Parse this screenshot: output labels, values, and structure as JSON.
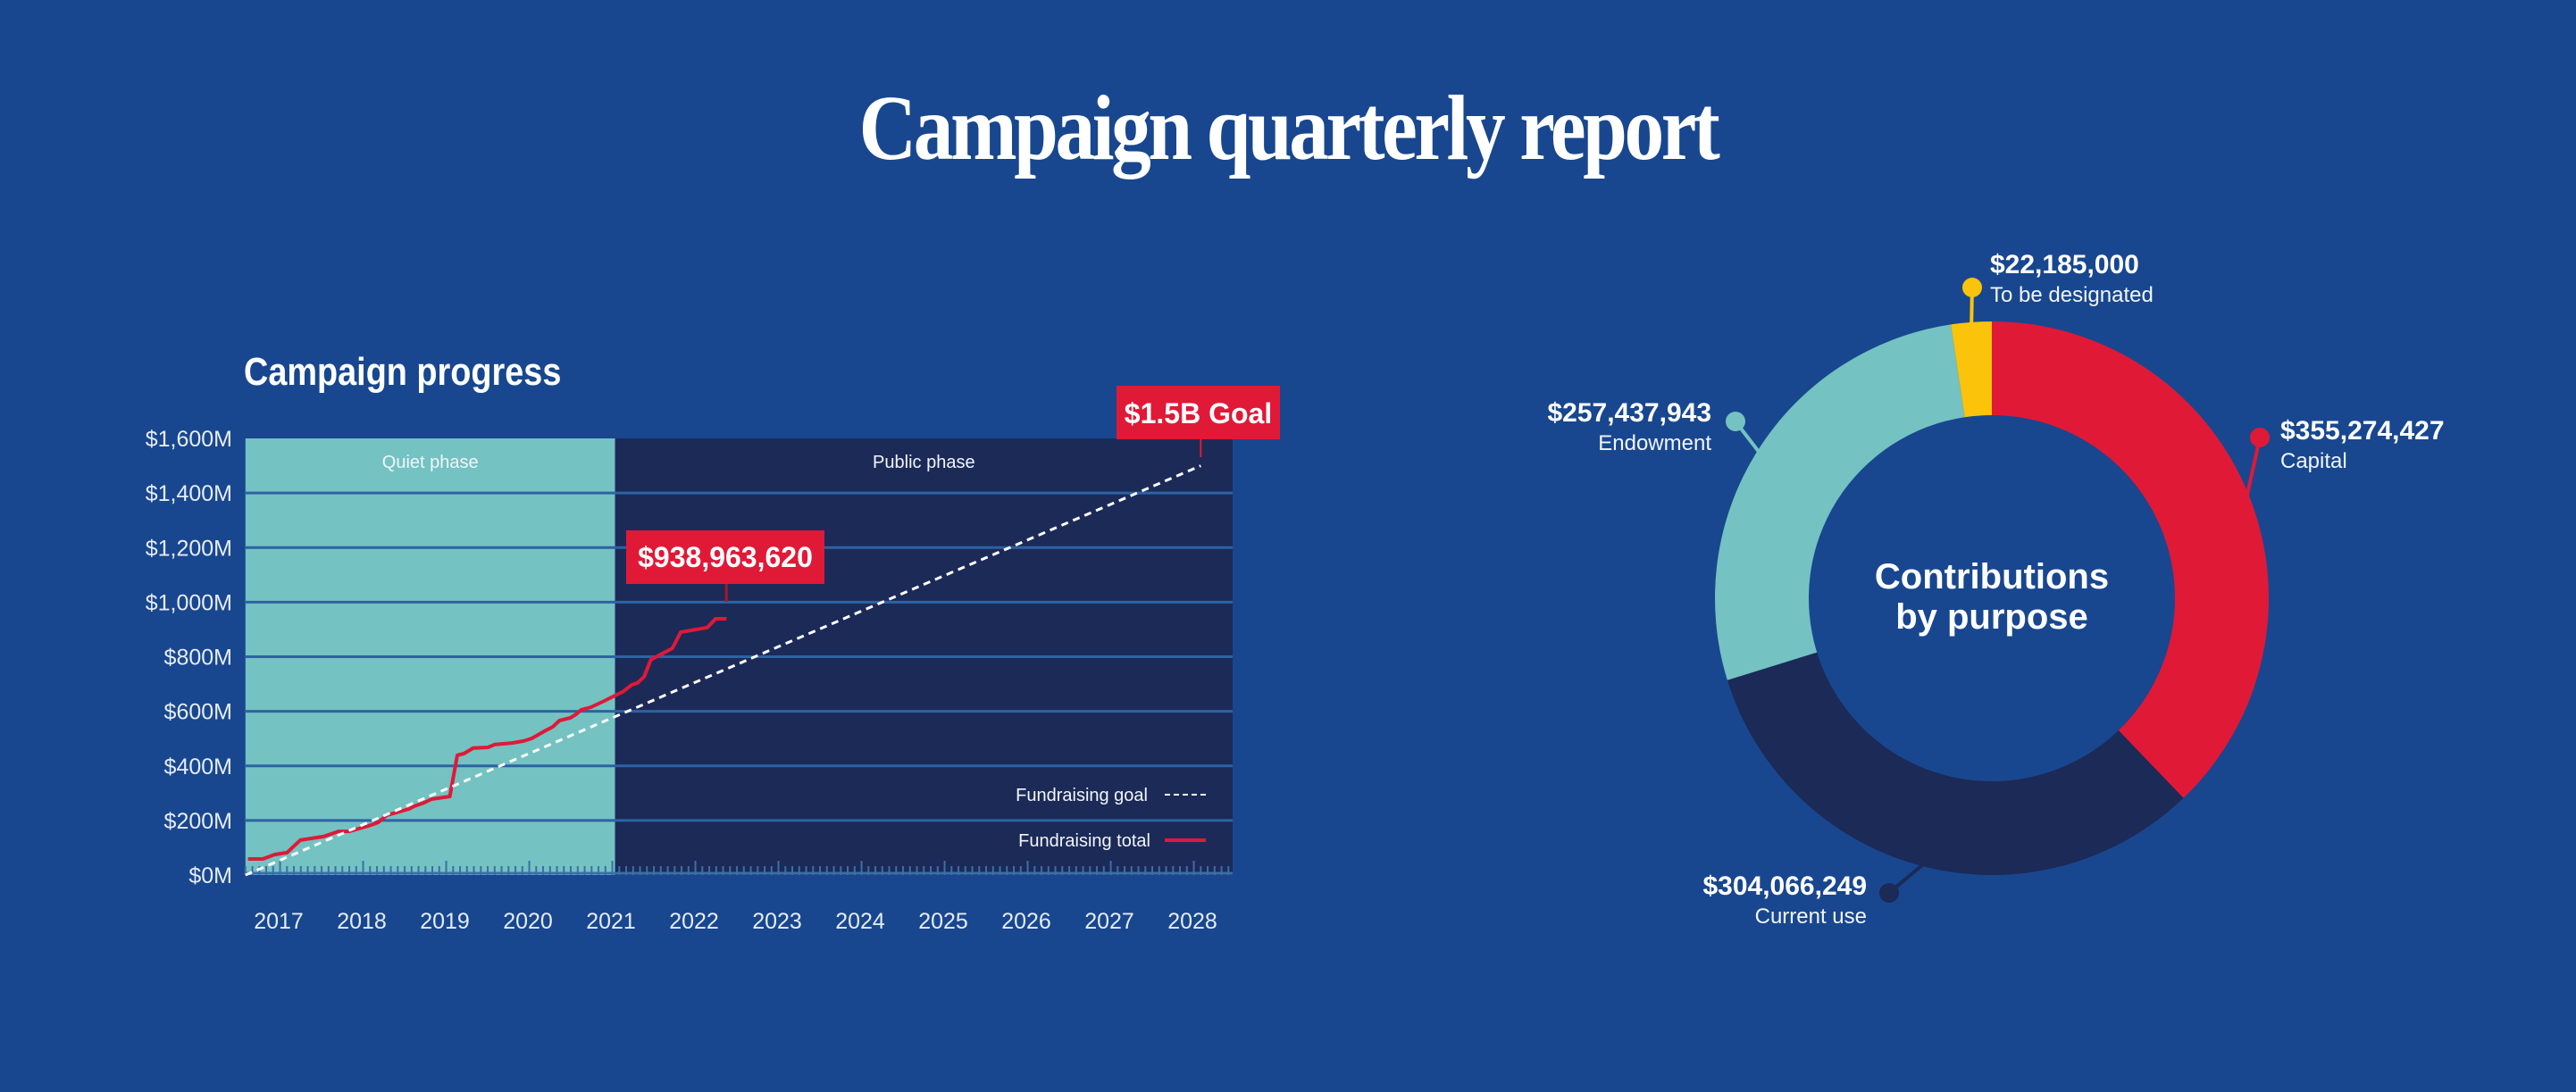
{
  "title": "Campaign quarterly report",
  "colors": {
    "background": "#18478f",
    "quiet_phase": "#74c2c2",
    "public_phase": "#1c2a58",
    "red": "#e01937",
    "teal": "#74c2c2",
    "navy": "#1c2a58",
    "yellow": "#fcc30b",
    "white": "#ffffff"
  },
  "chart_data": [
    {
      "type": "line",
      "title": "Campaign progress",
      "xlabel": "",
      "ylabel": "",
      "x_ticks": [
        "2017",
        "2018",
        "2019",
        "2020",
        "2021",
        "2022",
        "2023",
        "2024",
        "2025",
        "2026",
        "2027",
        "2028"
      ],
      "y_ticks": [
        "$0M",
        "$200M",
        "$400M",
        "$600M",
        "$800M",
        "$1,000M",
        "$1,200M",
        "$1,400M",
        "$1,600M"
      ],
      "y_tick_values": [
        0,
        200,
        400,
        600,
        800,
        1000,
        1200,
        1400,
        1600
      ],
      "xlim": [
        2016.6,
        2028.5
      ],
      "ylim": [
        0,
        1600
      ],
      "grid": true,
      "phases": [
        {
          "label": "Quiet phase",
          "start": 2016.6,
          "end": 2021.05
        },
        {
          "label": "Public phase",
          "start": 2021.05,
          "end": 2028.5
        }
      ],
      "series": [
        {
          "name": "Fundraising total",
          "style": "solid",
          "color": "#e01937",
          "points": [
            [
              2016.63,
              59
            ],
            [
              2016.81,
              59
            ],
            [
              2016.95,
              75
            ],
            [
              2017.1,
              82
            ],
            [
              2017.26,
              128
            ],
            [
              2017.54,
              141
            ],
            [
              2017.72,
              160
            ],
            [
              2017.85,
              160
            ],
            [
              2018.08,
              180
            ],
            [
              2018.2,
              193
            ],
            [
              2018.3,
              219
            ],
            [
              2018.57,
              242
            ],
            [
              2018.63,
              252
            ],
            [
              2018.75,
              265
            ],
            [
              2018.84,
              278
            ],
            [
              2019.06,
              288
            ],
            [
              2019.15,
              439
            ],
            [
              2019.23,
              445
            ],
            [
              2019.34,
              465
            ],
            [
              2019.52,
              468
            ],
            [
              2019.6,
              478
            ],
            [
              2019.81,
              484
            ],
            [
              2019.95,
              491
            ],
            [
              2020.05,
              501
            ],
            [
              2020.2,
              527
            ],
            [
              2020.3,
              543
            ],
            [
              2020.38,
              566
            ],
            [
              2020.51,
              576
            ],
            [
              2020.58,
              589
            ],
            [
              2020.64,
              605
            ],
            [
              2020.76,
              615
            ],
            [
              2020.92,
              638
            ],
            [
              2021.07,
              661
            ],
            [
              2021.14,
              671
            ],
            [
              2021.25,
              697
            ],
            [
              2021.32,
              704
            ],
            [
              2021.4,
              727
            ],
            [
              2021.48,
              789
            ],
            [
              2021.74,
              831
            ],
            [
              2021.84,
              890
            ],
            [
              2022.16,
              907
            ],
            [
              2022.26,
              939
            ],
            [
              2022.39,
              939
            ]
          ]
        },
        {
          "name": "Fundraising goal",
          "style": "dashed",
          "color": "#ffffff",
          "points": [
            [
              2016.6,
              0
            ],
            [
              2028.1,
              1500
            ]
          ]
        }
      ],
      "annotations": [
        {
          "text": "$938,963,620",
          "x": 2022.39,
          "y": 939
        },
        {
          "text": "$1.5B Goal",
          "x": 2028.1,
          "y": 1500
        }
      ],
      "legend": {
        "position": "bottom-right",
        "entries": [
          "Fundraising goal",
          "Fundraising total"
        ]
      }
    },
    {
      "type": "pie",
      "donut": true,
      "title": "Contributions by purpose",
      "title_lines": [
        "Contributions",
        "by purpose"
      ],
      "slices": [
        {
          "label": "Capital",
          "value": 355274427,
          "value_text": "$355,274,427",
          "color": "#e01937"
        },
        {
          "label": "Current use",
          "value": 304066249,
          "value_text": "$304,066,249",
          "color": "#1c2a58"
        },
        {
          "label": "Endowment",
          "value": 257437943,
          "value_text": "$257,437,943",
          "color": "#74c2c2"
        },
        {
          "label": "To be designated",
          "value": 22185000,
          "value_text": "$22,185,000",
          "color": "#fcc30b"
        }
      ]
    }
  ]
}
